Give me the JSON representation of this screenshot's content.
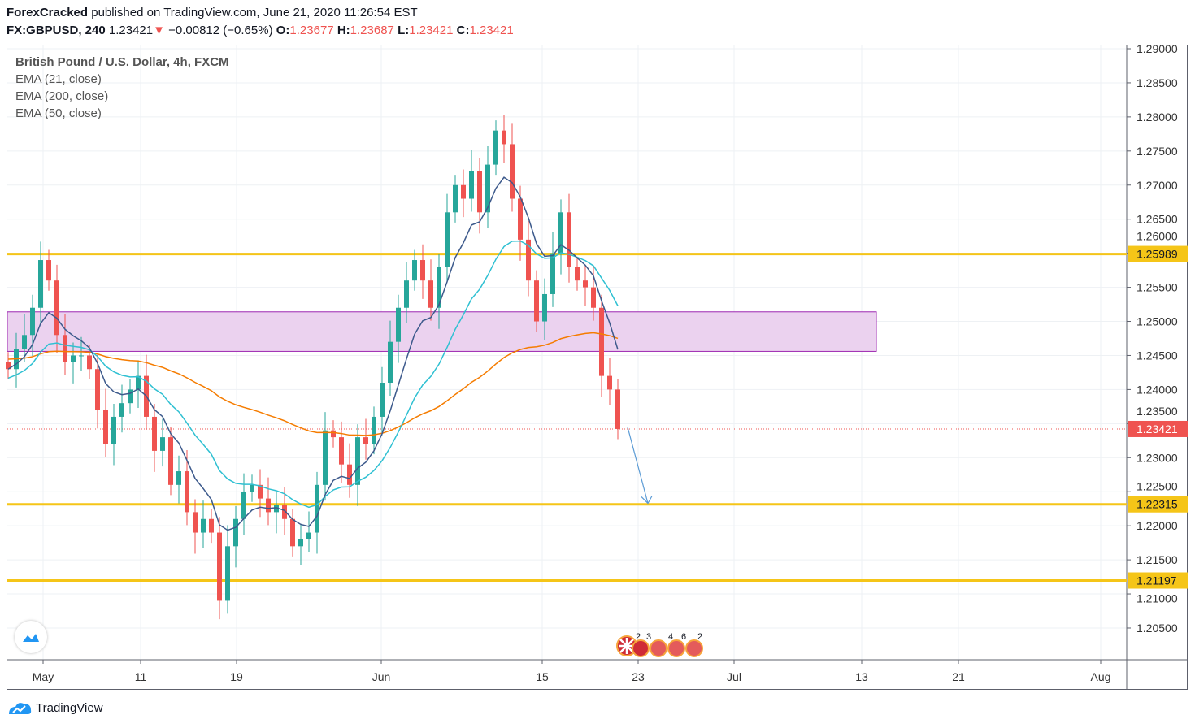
{
  "header": {
    "author": "ForexCracked",
    "published": "published on TradingView.com, June 21, 2020 11:26:54 EST",
    "symbol": "FX:GBPUSD, 240",
    "last": "1.23421",
    "change": "−0.00812 (−0.65%)",
    "o_label": "O:",
    "o": "1.23677",
    "h_label": "H:",
    "h": "1.23687",
    "l_label": "L:",
    "l": "1.23421",
    "c_label": "C:",
    "c": "1.23421"
  },
  "legend": {
    "title": "British Pound / U.S. Dollar, 4h, FXCM",
    "ema21": "EMA (21, close)",
    "ema200": "EMA (200, close)",
    "ema50": "EMA (50, close)"
  },
  "events": {
    "labels": [
      "2",
      "3",
      "4",
      "6",
      "2"
    ]
  },
  "footer": {
    "brand": "TradingView"
  },
  "colors": {
    "up": "#26a69a",
    "down": "#ef5350",
    "ema21": "#3d5a8c",
    "ema50": "#2fc0d2",
    "ema200": "#f57c00",
    "levels": "#f5c518",
    "zone_fill": "#ebd2ef",
    "zone_border": "#9c27b0",
    "arrow": "#5b9bd5"
  },
  "chart_data": {
    "type": "candlestick",
    "start": "2020-04-29",
    "sample_interval": "12h",
    "closes": [
      1.243,
      1.246,
      1.248,
      1.252,
      1.259,
      1.256,
      1.248,
      1.244,
      1.245,
      1.245,
      1.243,
      1.237,
      1.232,
      1.236,
      1.238,
      1.24,
      1.242,
      1.236,
      1.231,
      1.233,
      1.226,
      1.228,
      1.222,
      1.219,
      1.221,
      1.219,
      1.209,
      1.217,
      1.221,
      1.225,
      1.226,
      1.224,
      1.222,
      1.223,
      1.221,
      1.217,
      1.218,
      1.219,
      1.226,
      1.234,
      1.233,
      1.229,
      1.226,
      1.233,
      1.232,
      1.236,
      1.241,
      1.247,
      1.252,
      1.256,
      1.259,
      1.256,
      1.252,
      1.258,
      1.266,
      1.27,
      1.268,
      1.272,
      1.266,
      1.273,
      1.278,
      1.276,
      1.268,
      1.262,
      1.256,
      1.25,
      1.254,
      1.26,
      1.266,
      1.258,
      1.256,
      1.255,
      1.252,
      1.242,
      1.24,
      1.23421
    ],
    "x_ticks": [
      "May",
      "11",
      "19",
      "Jun",
      "15",
      "23",
      "Jul",
      "13",
      "21",
      "Aug"
    ],
    "y_ticks": [
      "1.29000",
      "1.28500",
      "1.28000",
      "1.27500",
      "1.27000",
      "1.26500",
      "1.26000",
      "1.25500",
      "1.25000",
      "1.24500",
      "1.24000",
      "1.23500",
      "1.23000",
      "1.22500",
      "1.22000",
      "1.21500",
      "1.21000",
      "1.20500"
    ],
    "ylim": [
      1.2,
      1.2915
    ],
    "levels": [
      "1.25989",
      "1.22315",
      "1.21197"
    ],
    "current_price": "1.23421",
    "zone": [
      1.2456,
      1.2514
    ],
    "arrow": {
      "from": 1.2345,
      "to": 1.2233
    },
    "series": [
      "EMA (21, close)",
      "EMA (200, close)",
      "EMA (50, close)"
    ]
  }
}
